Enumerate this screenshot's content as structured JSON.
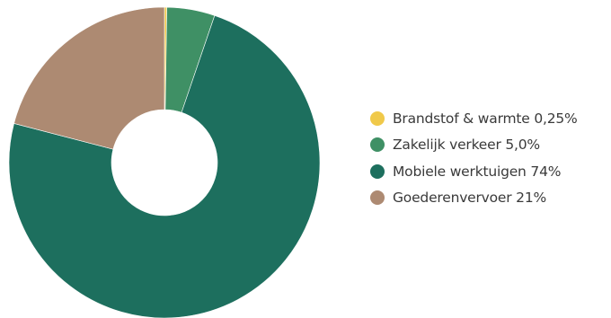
{
  "chart_data": {
    "type": "pie",
    "variant": "donut",
    "categories": [
      "Brandstof & warmte",
      "Zakelijk verkeer",
      "Mobiele werktuigen",
      "Goederenvervoer"
    ],
    "values": [
      0.25,
      5.0,
      74,
      21
    ],
    "colors": [
      "#f0c94a",
      "#3f9065",
      "#1d6f5e",
      "#ad8a72"
    ],
    "legend": {
      "placement": "right",
      "labels": [
        "Brandstof & warmte 0,25%",
        "Zakelijk verkeer 5,0%",
        "Mobiele werktuigen 74%",
        "Goederenvervoer 21%"
      ]
    },
    "start_angle_deg": 0,
    "direction": "clockwise",
    "title": "",
    "xlabel": "",
    "ylabel": ""
  }
}
